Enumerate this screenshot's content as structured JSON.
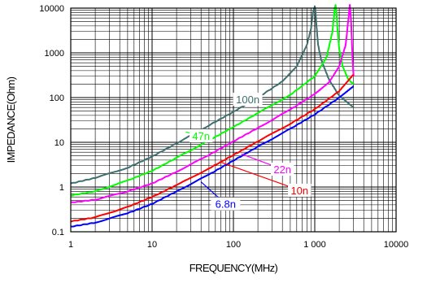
{
  "chart_data": {
    "type": "line",
    "xlabel": "FREQUENCY(MHz)",
    "ylabel": "IMPEDANCE(Ohm)",
    "x_scale": "log",
    "y_scale": "log",
    "xlim": [
      1,
      10000
    ],
    "ylim": [
      0.1,
      10000
    ],
    "grid": true,
    "x_ticks": [
      {
        "value": 1,
        "label": "1"
      },
      {
        "value": 10,
        "label": "10"
      },
      {
        "value": 100,
        "label": "100"
      },
      {
        "value": 1000,
        "label": "1 000"
      },
      {
        "value": 10000,
        "label": "10000"
      }
    ],
    "y_ticks": [
      {
        "value": 0.1,
        "label": "0.1"
      },
      {
        "value": 1,
        "label": "1"
      },
      {
        "value": 10,
        "label": "10"
      },
      {
        "value": 100,
        "label": "100"
      },
      {
        "value": 1000,
        "label": "1000"
      },
      {
        "value": 10000,
        "label": "10000"
      }
    ],
    "series": [
      {
        "name": "100n",
        "color": "#3f6f6f",
        "label_pos": [
          150,
          92
        ],
        "label_anchor": [
          230,
          96
        ],
        "x": [
          1,
          2,
          5,
          10,
          20,
          50,
          100,
          200,
          400,
          600,
          800,
          900,
          950,
          1000,
          1020,
          1050,
          1100,
          1200,
          1500,
          2000,
          3000
        ],
        "y": [
          1.2,
          1.6,
          2.7,
          4.8,
          9.5,
          24,
          48,
          100,
          230,
          500,
          1500,
          3500,
          8000,
          11000,
          9000,
          4000,
          1500,
          700,
          250,
          110,
          60
        ]
      },
      {
        "name": "47n",
        "color": "#00ff00",
        "label_pos": [
          40,
          14
        ],
        "label_anchor": [
          26,
          17
        ],
        "x": [
          1,
          2,
          5,
          10,
          20,
          50,
          100,
          200,
          500,
          1000,
          1400,
          1650,
          1750,
          1800,
          1850,
          1900,
          2000,
          2200,
          2600,
          3000
        ],
        "y": [
          0.65,
          0.8,
          1.4,
          2.3,
          4.5,
          11,
          22,
          45,
          115,
          300,
          800,
          3000,
          9000,
          12000,
          8000,
          3500,
          1200,
          500,
          250,
          200
        ]
      },
      {
        "name": "22n",
        "color": "#ff00ff",
        "label_pos": [
          400,
          2.5
        ],
        "label_anchor": [
          125,
          5.5
        ],
        "x": [
          1,
          2,
          5,
          10,
          20,
          50,
          100,
          200,
          500,
          1000,
          1500,
          2000,
          2400,
          2600,
          2700,
          2800,
          2900,
          3000
        ],
        "y": [
          0.45,
          0.52,
          0.8,
          1.2,
          2.2,
          5.2,
          10.5,
          21,
          54,
          120,
          220,
          500,
          1500,
          6000,
          12000,
          5000,
          900,
          300
        ]
      },
      {
        "name": "10n",
        "color": "#ff0000",
        "label_pos": [
          650,
          0.85
        ],
        "label_anchor": [
          70,
          3.6
        ],
        "x": [
          1,
          2,
          5,
          10,
          20,
          50,
          100,
          200,
          500,
          1000,
          2000,
          3000
        ],
        "y": [
          0.17,
          0.21,
          0.36,
          0.6,
          1.1,
          2.6,
          5.2,
          10.5,
          26,
          55,
          140,
          330
        ]
      },
      {
        "name": "6.8n",
        "color": "#0000ff",
        "label_pos": [
          80,
          0.42
        ],
        "label_anchor": [
          40,
          1.3
        ],
        "x": [
          1,
          2,
          5,
          10,
          20,
          50,
          100,
          200,
          500,
          1000,
          2000,
          3000
        ],
        "y": [
          0.13,
          0.16,
          0.26,
          0.42,
          0.8,
          1.9,
          3.9,
          8,
          20,
          42,
          100,
          180
        ]
      }
    ]
  }
}
